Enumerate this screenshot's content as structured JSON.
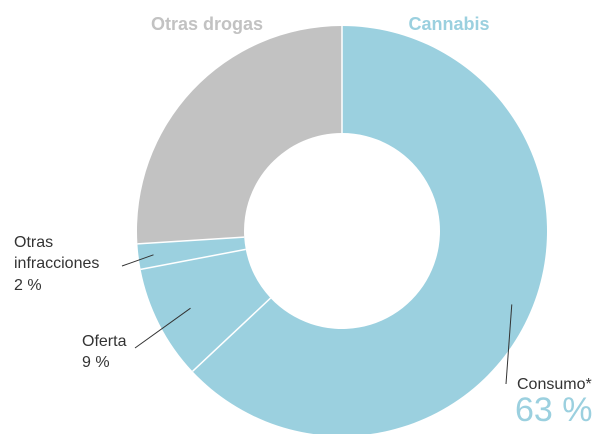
{
  "chart_data": {
    "type": "pie",
    "style": "donut",
    "groups": [
      {
        "name": "Otras drogas",
        "color": "#c2c2c2"
      },
      {
        "name": "Cannabis",
        "color": "#9bd0df"
      }
    ],
    "slices": [
      {
        "group": "Cannabis",
        "label_lines": [
          "Consumo*"
        ],
        "value_label": "63 %",
        "value": 63,
        "color": "#9bd0df"
      },
      {
        "group": "Cannabis",
        "label_lines": [
          "Oferta"
        ],
        "value_label": "9 %",
        "value": 9,
        "color": "#9bd0df"
      },
      {
        "group": "Cannabis",
        "label_lines": [
          "Otras",
          "infracciones"
        ],
        "value_label": "2 %",
        "value": 2,
        "color": "#9bd0df"
      },
      {
        "group": "Otras drogas",
        "label_lines": [],
        "value_label": "",
        "value": 26,
        "color": "#c2c2c2"
      }
    ],
    "colors": {
      "label_text": "#333333",
      "leader_line": "#333333",
      "separator": "#ffffff"
    }
  }
}
